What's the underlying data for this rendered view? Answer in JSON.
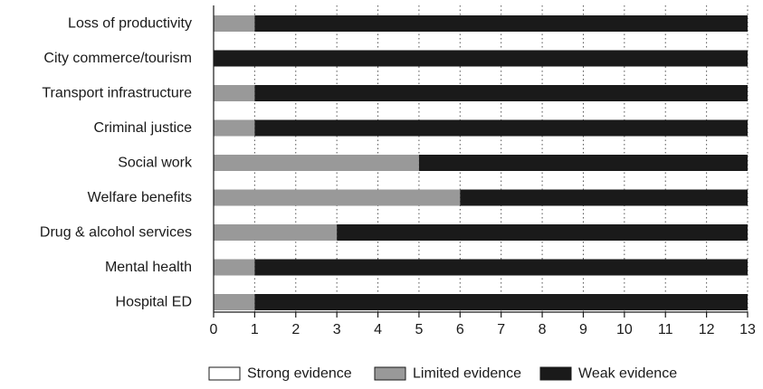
{
  "chart_data": {
    "type": "bar",
    "orientation": "horizontal",
    "stacked": true,
    "title": "",
    "xlabel": "",
    "ylabel": "",
    "xlim": [
      0,
      13
    ],
    "x_ticks": [
      "0",
      "1",
      "2",
      "3",
      "4",
      "5",
      "6",
      "7",
      "8",
      "9",
      "10",
      "11",
      "12",
      "13"
    ],
    "grid": "vertical-dotted",
    "legend_position": "bottom",
    "categories": [
      "Loss of productivity",
      "City commerce/tourism",
      "Transport infrastructure",
      "Criminal justice",
      "Social work",
      "Welfare benefits",
      "Drug & alcohol services",
      "Mental health",
      "Hospital ED"
    ],
    "series": [
      {
        "name": "Strong evidence",
        "color": "#ffffff",
        "values": [
          0,
          0,
          0,
          0,
          0,
          0,
          0,
          0,
          0
        ]
      },
      {
        "name": "Limited evidence",
        "color": "#999999",
        "values": [
          1,
          0,
          1,
          1,
          5,
          6,
          3,
          1,
          1
        ]
      },
      {
        "name": "Weak evidence",
        "color": "#1a1a1a",
        "values": [
          12,
          13,
          12,
          12,
          8,
          7,
          10,
          12,
          12
        ]
      }
    ]
  }
}
